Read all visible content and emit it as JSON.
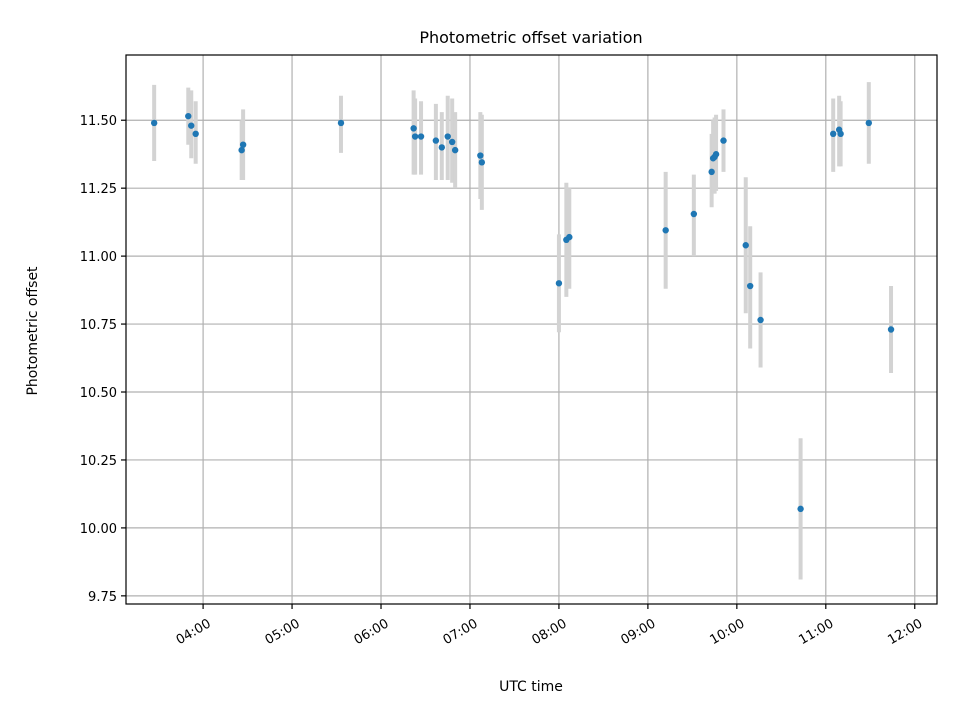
{
  "chart_data": {
    "type": "scatter",
    "title": "Photometric offset variation",
    "xlabel": "UTC time",
    "ylabel": "Photometric offset",
    "xlim": [
      "03:08",
      "12:15"
    ],
    "ylim": [
      9.72,
      11.74
    ],
    "grid": true,
    "x_ticks": [
      "04:00",
      "05:00",
      "06:00",
      "07:00",
      "08:00",
      "09:00",
      "10:00",
      "11:00",
      "12:00"
    ],
    "y_ticks": [
      "9.75",
      "10.00",
      "10.25",
      "10.50",
      "10.75",
      "11.00",
      "11.25",
      "11.50"
    ],
    "colors": {
      "point": "#1f77b4",
      "errorbar": "#d3d3d3",
      "grid": "#b0b0b0"
    },
    "series": [
      {
        "points": [
          {
            "x": "03:27",
            "y": 11.49,
            "lo": 11.35,
            "hi": 11.63
          },
          {
            "x": "03:50",
            "y": 11.515,
            "lo": 11.41,
            "hi": 11.62
          },
          {
            "x": "03:52",
            "y": 11.48,
            "lo": 11.36,
            "hi": 11.61
          },
          {
            "x": "03:55",
            "y": 11.45,
            "lo": 11.34,
            "hi": 11.57
          },
          {
            "x": "04:26",
            "y": 11.39,
            "lo": 11.28,
            "hi": 11.5
          },
          {
            "x": "04:27",
            "y": 11.41,
            "lo": 11.28,
            "hi": 11.54
          },
          {
            "x": "05:33",
            "y": 11.49,
            "lo": 11.38,
            "hi": 11.59
          },
          {
            "x": "06:22",
            "y": 11.47,
            "lo": 11.3,
            "hi": 11.61
          },
          {
            "x": "06:23",
            "y": 11.44,
            "lo": 11.3,
            "hi": 11.58
          },
          {
            "x": "06:27",
            "y": 11.44,
            "lo": 11.3,
            "hi": 11.57
          },
          {
            "x": "06:37",
            "y": 11.425,
            "lo": 11.28,
            "hi": 11.56
          },
          {
            "x": "06:41",
            "y": 11.4,
            "lo": 11.28,
            "hi": 11.53
          },
          {
            "x": "06:45",
            "y": 11.44,
            "lo": 11.28,
            "hi": 11.59
          },
          {
            "x": "06:48",
            "y": 11.42,
            "lo": 11.27,
            "hi": 11.58
          },
          {
            "x": "06:50",
            "y": 11.39,
            "lo": 11.25,
            "hi": 11.53
          },
          {
            "x": "07:07",
            "y": 11.37,
            "lo": 11.21,
            "hi": 11.53
          },
          {
            "x": "07:08",
            "y": 11.345,
            "lo": 11.17,
            "hi": 11.52
          },
          {
            "x": "08:00",
            "y": 10.9,
            "lo": 10.72,
            "hi": 11.08
          },
          {
            "x": "08:05",
            "y": 11.06,
            "lo": 10.85,
            "hi": 11.27
          },
          {
            "x": "08:07",
            "y": 11.07,
            "lo": 10.88,
            "hi": 11.25
          },
          {
            "x": "09:12",
            "y": 11.095,
            "lo": 10.88,
            "hi": 11.31
          },
          {
            "x": "09:31",
            "y": 11.155,
            "lo": 11.0,
            "hi": 11.3
          },
          {
            "x": "09:43",
            "y": 11.31,
            "lo": 11.18,
            "hi": 11.45
          },
          {
            "x": "09:44",
            "y": 11.36,
            "lo": 11.23,
            "hi": 11.5
          },
          {
            "x": "09:45",
            "y": 11.365,
            "lo": 11.23,
            "hi": 11.51
          },
          {
            "x": "09:46",
            "y": 11.375,
            "lo": 11.24,
            "hi": 11.52
          },
          {
            "x": "09:51",
            "y": 11.425,
            "lo": 11.31,
            "hi": 11.54
          },
          {
            "x": "10:06",
            "y": 11.04,
            "lo": 10.79,
            "hi": 11.29
          },
          {
            "x": "10:09",
            "y": 10.89,
            "lo": 10.66,
            "hi": 11.11
          },
          {
            "x": "10:16",
            "y": 10.765,
            "lo": 10.59,
            "hi": 10.94
          },
          {
            "x": "10:43",
            "y": 10.07,
            "lo": 9.81,
            "hi": 10.33
          },
          {
            "x": "11:05",
            "y": 11.45,
            "lo": 11.31,
            "hi": 11.58
          },
          {
            "x": "11:09",
            "y": 11.465,
            "lo": 11.33,
            "hi": 11.59
          },
          {
            "x": "11:10",
            "y": 11.45,
            "lo": 11.33,
            "hi": 11.57
          },
          {
            "x": "11:29",
            "y": 11.49,
            "lo": 11.34,
            "hi": 11.64
          },
          {
            "x": "11:44",
            "y": 10.73,
            "lo": 10.57,
            "hi": 10.89
          }
        ]
      }
    ]
  }
}
